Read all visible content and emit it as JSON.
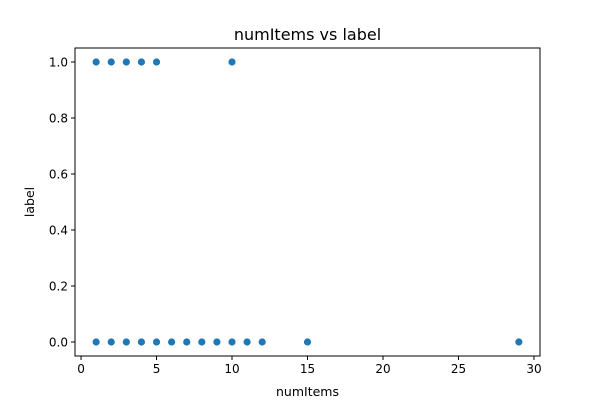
{
  "chart_data": {
    "type": "scatter",
    "title": "numItems vs label",
    "xlabel": "numItems",
    "ylabel": "label",
    "xlim": [
      -0.4,
      30.4
    ],
    "ylim": [
      -0.05,
      1.05
    ],
    "xticks": [
      0,
      5,
      10,
      15,
      20,
      25,
      30
    ],
    "xtick_labels": [
      "0",
      "5",
      "10",
      "15",
      "20",
      "25",
      "30"
    ],
    "yticks": [
      0.0,
      0.2,
      0.4,
      0.6,
      0.8,
      1.0
    ],
    "ytick_labels": [
      "0.0",
      "0.2",
      "0.4",
      "0.6",
      "0.8",
      "1.0"
    ],
    "grid": false,
    "legend": "none",
    "marker_color": "#1f77b4",
    "points": [
      {
        "x": 1,
        "y": 1.0
      },
      {
        "x": 2,
        "y": 1.0
      },
      {
        "x": 3,
        "y": 1.0
      },
      {
        "x": 4,
        "y": 1.0
      },
      {
        "x": 5,
        "y": 1.0
      },
      {
        "x": 10,
        "y": 1.0
      },
      {
        "x": 1,
        "y": 0.0
      },
      {
        "x": 2,
        "y": 0.0
      },
      {
        "x": 3,
        "y": 0.0
      },
      {
        "x": 4,
        "y": 0.0
      },
      {
        "x": 5,
        "y": 0.0
      },
      {
        "x": 6,
        "y": 0.0
      },
      {
        "x": 7,
        "y": 0.0
      },
      {
        "x": 8,
        "y": 0.0
      },
      {
        "x": 9,
        "y": 0.0
      },
      {
        "x": 10,
        "y": 0.0
      },
      {
        "x": 11,
        "y": 0.0
      },
      {
        "x": 12,
        "y": 0.0
      },
      {
        "x": 15,
        "y": 0.0
      },
      {
        "x": 29,
        "y": 0.0
      }
    ]
  }
}
